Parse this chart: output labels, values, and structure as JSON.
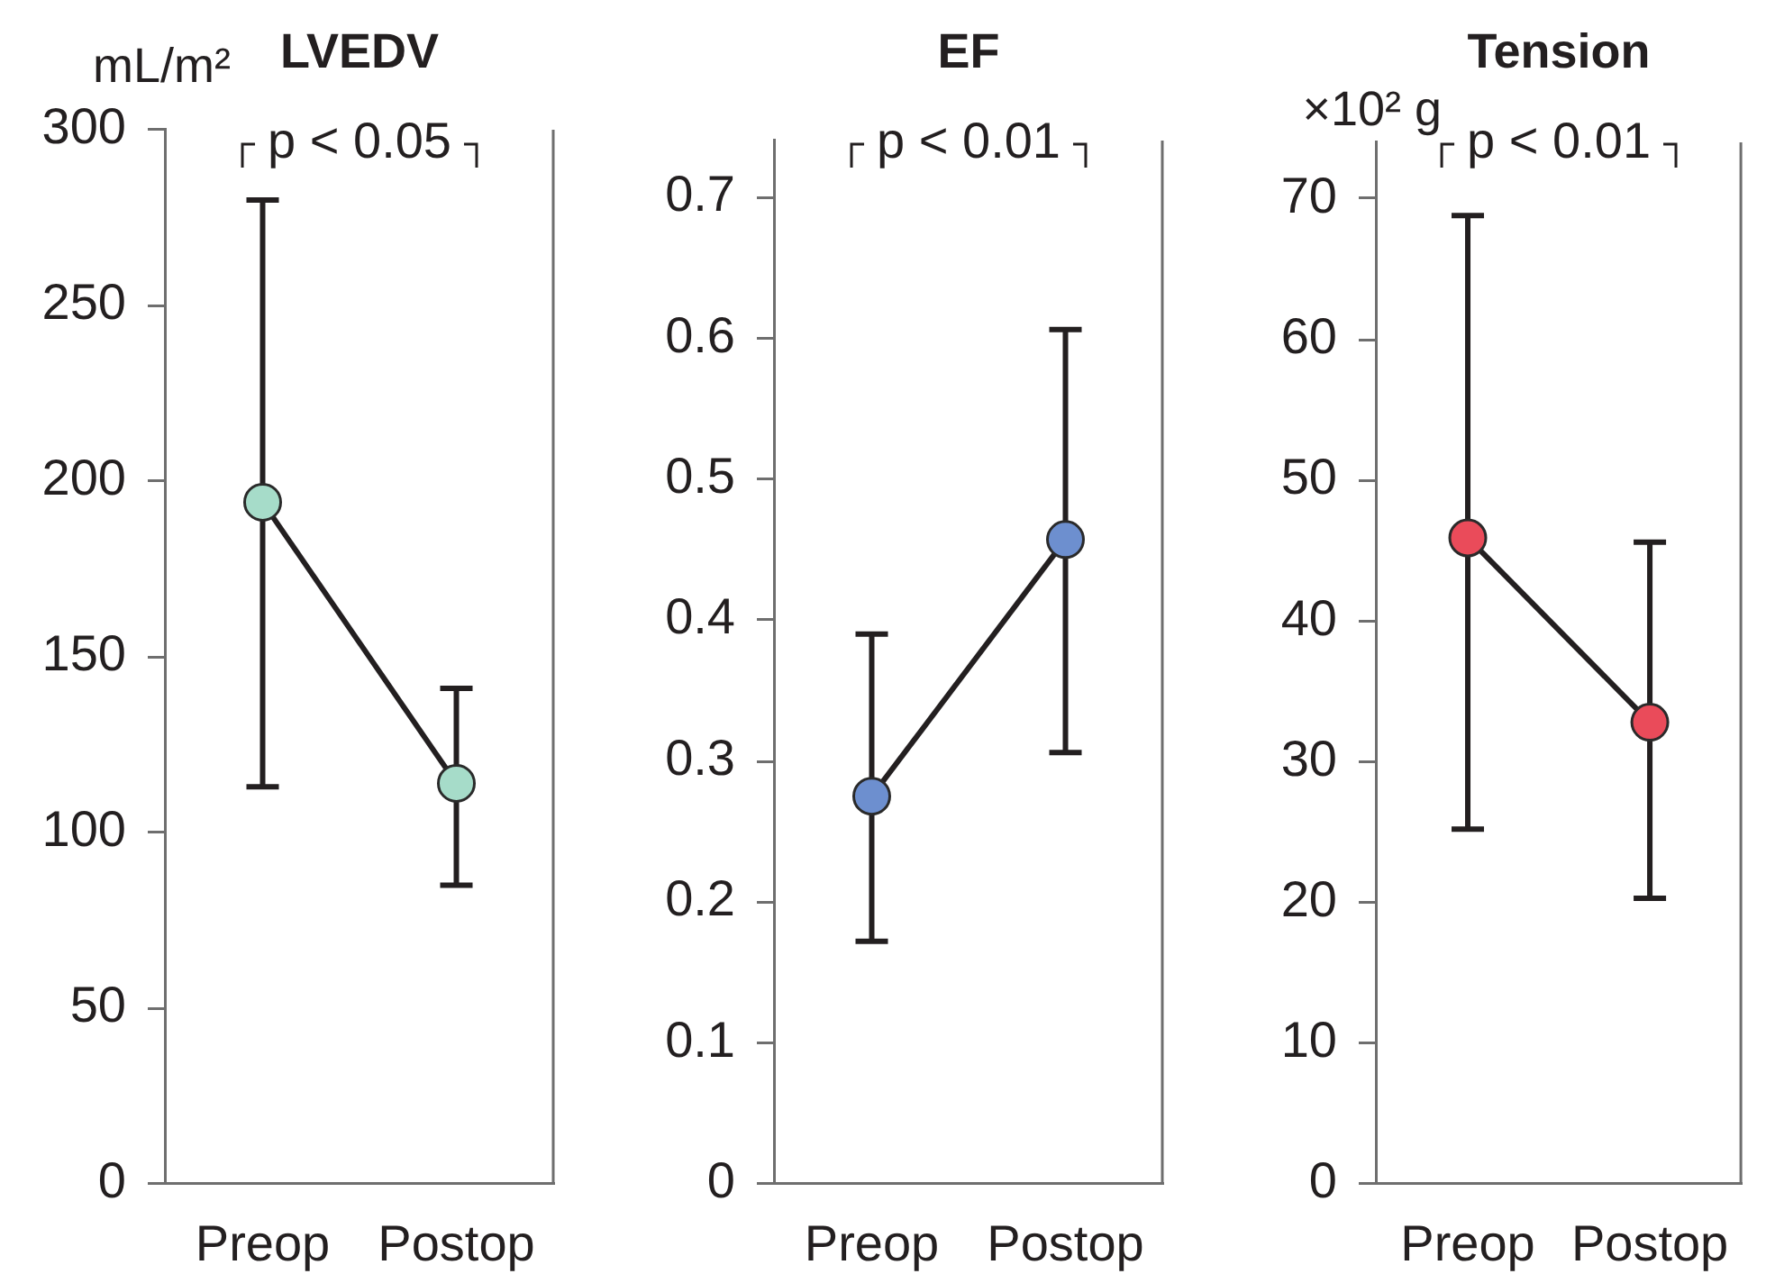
{
  "chart_data": [
    {
      "type": "line",
      "title": "LVEDV",
      "ylabel": "mL/m²",
      "categories": [
        "Preop",
        "Postop"
      ],
      "values": [
        194,
        114
      ],
      "errors": [
        [
          113,
          280
        ],
        [
          85,
          141
        ]
      ],
      "color": "#a6dcc9",
      "marker": "circle",
      "ylim": [
        0,
        300
      ],
      "yticks": [
        0,
        50,
        100,
        150,
        200,
        250,
        300
      ],
      "grid": false,
      "annotations": [
        "p < 0.05"
      ]
    },
    {
      "type": "line",
      "title": "EF",
      "categories": [
        "Preop",
        "Postop"
      ],
      "values": [
        0.275,
        0.457
      ],
      "errors": [
        [
          0.172,
          0.39
        ],
        [
          0.306,
          0.606
        ]
      ],
      "color": "#6d8fcf",
      "marker": "circle",
      "ylim": [
        0,
        0.74
      ],
      "yticks": [
        0,
        0.1,
        0.2,
        0.3,
        0.4,
        0.5,
        0.6,
        0.7
      ],
      "grid": false,
      "annotations": [
        "p < 0.01"
      ]
    },
    {
      "type": "line",
      "title": "Tension",
      "ylabel": "×10² g",
      "categories": [
        "Preop",
        "Postop"
      ],
      "values": [
        45.9,
        32.8
      ],
      "errors": [
        [
          25.2,
          68.8
        ],
        [
          20.3,
          45.6
        ]
      ],
      "color": "#ea4b5a",
      "marker": "circle",
      "ylim": [
        0,
        74
      ],
      "yticks": [
        0,
        10,
        20,
        30,
        40,
        50,
        60,
        70
      ],
      "grid": false,
      "annotations": [
        "p < 0.01"
      ]
    }
  ]
}
